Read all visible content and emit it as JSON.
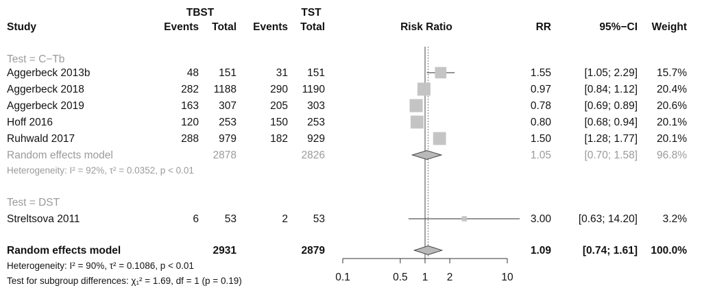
{
  "headers": {
    "group1": "TBST",
    "group2": "TST",
    "study": "Study",
    "events": "Events",
    "total": "Total",
    "plot": "Risk Ratio",
    "rr": "RR",
    "ci": "95%−CI",
    "weight": "Weight"
  },
  "subgroups": [
    {
      "label": "Test = C−Tb",
      "studies": [
        {
          "name": "Aggerbeck 2013b",
          "e1": "48",
          "n1": "151",
          "e2": "31",
          "n2": "151",
          "rr_text": "1.55",
          "ci_text": "[1.05; 2.29]",
          "weight": "15.7%"
        },
        {
          "name": "Aggerbeck 2018",
          "e1": "282",
          "n1": "1188",
          "e2": "290",
          "n2": "1190",
          "rr_text": "0.97",
          "ci_text": "[0.84; 1.12]",
          "weight": "20.4%"
        },
        {
          "name": "Aggerbeck 2019",
          "e1": "163",
          "n1": "307",
          "e2": "205",
          "n2": "303",
          "rr_text": "0.78",
          "ci_text": "[0.69; 0.89]",
          "weight": "20.6%"
        },
        {
          "name": "Hoff 2016",
          "e1": "120",
          "n1": "253",
          "e2": "150",
          "n2": "253",
          "rr_text": "0.80",
          "ci_text": "[0.68; 0.94]",
          "weight": "20.1%"
        },
        {
          "name": "Ruhwald 2017",
          "e1": "288",
          "n1": "979",
          "e2": "182",
          "n2": "929",
          "rr_text": "1.50",
          "ci_text": "[1.28; 1.77]",
          "weight": "20.1%"
        }
      ],
      "pooled": {
        "name": "Random effects model",
        "n1": "2878",
        "n2": "2826",
        "rr_text": "1.05",
        "ci_text": "[0.70; 1.58]",
        "weight": "96.8%"
      },
      "heterogeneity": "Heterogeneity: I² = 92%, τ² = 0.0352, p < 0.01"
    },
    {
      "label": "Test = DST",
      "studies": [
        {
          "name": "Streltsova 2011",
          "e1": "6",
          "n1": "53",
          "e2": "2",
          "n2": "53",
          "rr_text": "3.00",
          "ci_text": "[0.63; 14.20]",
          "weight": "3.2%"
        }
      ]
    }
  ],
  "overall": {
    "name": "Random effects model",
    "n1": "2931",
    "n2": "2879",
    "rr_text": "1.09",
    "ci_text": "[0.74; 1.61]",
    "weight": "100.0%"
  },
  "overall_heterogeneity": "Heterogeneity: I² = 90%, τ² = 0.1086, p < 0.01",
  "subgroup_test": "Test for subgroup differences: χ₁² = 1.69, df = 1 (p = 0.19)",
  "chart_data": {
    "type": "forest",
    "scale": "log",
    "xlim": [
      0.1,
      10
    ],
    "xticks": [
      {
        "value": 0.1,
        "label": "0.1"
      },
      {
        "value": 0.5,
        "label": "0.5"
      },
      {
        "value": 1,
        "label": "1"
      },
      {
        "value": 2,
        "label": "2"
      },
      {
        "value": 10,
        "label": "10"
      }
    ],
    "reference_line": 1,
    "overall_line": 1.09,
    "studies": [
      {
        "rr": 1.55,
        "lo": 1.05,
        "hi": 2.29,
        "weight": 15.7
      },
      {
        "rr": 0.97,
        "lo": 0.84,
        "hi": 1.12,
        "weight": 20.4
      },
      {
        "rr": 0.78,
        "lo": 0.69,
        "hi": 0.89,
        "weight": 20.6
      },
      {
        "rr": 0.8,
        "lo": 0.68,
        "hi": 0.94,
        "weight": 20.1
      },
      {
        "rr": 1.5,
        "lo": 1.28,
        "hi": 1.77,
        "weight": 20.1
      },
      {
        "rr": 3.0,
        "lo": 0.63,
        "hi": 14.2,
        "weight": 3.2
      }
    ],
    "diamonds": [
      {
        "rr": 1.05,
        "lo": 0.7,
        "hi": 1.58
      },
      {
        "rr": 1.09,
        "lo": 0.74,
        "hi": 1.61
      }
    ],
    "colors": {
      "box": "#c4c4c4",
      "line": "#555555",
      "diamond": "#b9b9b9",
      "text_muted": "#9a9a9a"
    }
  }
}
